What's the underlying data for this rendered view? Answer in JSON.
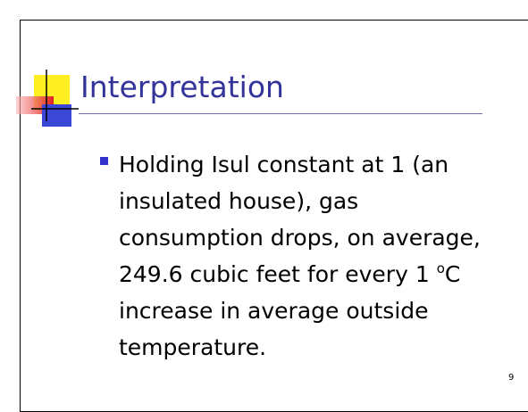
{
  "slide": {
    "title": "Interpretation",
    "bullet": {
      "lines": [
        "Holding Isul constant at 1 (an",
        "insulated house), gas",
        "consumption drops, on average,"
      ],
      "degree_line": {
        "before": "249.6 cubic feet for every 1 ",
        "sup": "o",
        "after": "C"
      },
      "tail": [
        "increase in average outside",
        "temperature."
      ]
    },
    "page_number": "9"
  }
}
